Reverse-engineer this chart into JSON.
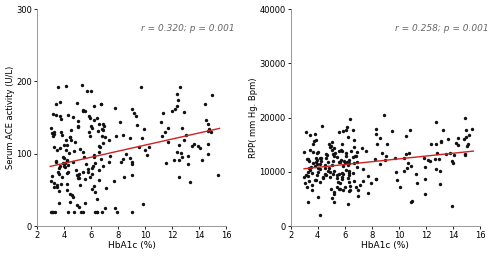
{
  "plot_a": {
    "xlabel": "HbA1c (%)",
    "ylabel": "Serum ACE activity (U/L)",
    "xlim": [
      2,
      16
    ],
    "ylim": [
      0,
      300
    ],
    "xticks": [
      2,
      4,
      6,
      8,
      10,
      12,
      14,
      16
    ],
    "yticks": [
      0,
      100,
      200,
      300
    ],
    "annotation": "r = 0.320; p = 0.001",
    "r": 0.32,
    "intercept": 70.0,
    "slope": 4.2,
    "x_line_start": 3,
    "x_line_end": 15.5
  },
  "plot_b": {
    "xlabel": "HbA1c (%)",
    "ylabel": "RPP( mm Hg. Bpm)",
    "xlim": [
      2,
      16
    ],
    "ylim": [
      0,
      40000
    ],
    "xticks": [
      2,
      4,
      6,
      8,
      10,
      12,
      14,
      16
    ],
    "yticks": [
      0,
      10000,
      20000,
      30000,
      40000
    ],
    "annotation": "r = 0.258; p = 0.001",
    "r": 0.258,
    "intercept": 9800.0,
    "slope": 260.0,
    "x_line_start": 3,
    "x_line_end": 15.5
  },
  "scatter_color": "#111111",
  "line_color": "#cc2222",
  "marker_size": 6,
  "background_color": "#ffffff",
  "seed_a": 42,
  "seed_b": 99,
  "n_points_a": 220,
  "n_points_b": 220
}
